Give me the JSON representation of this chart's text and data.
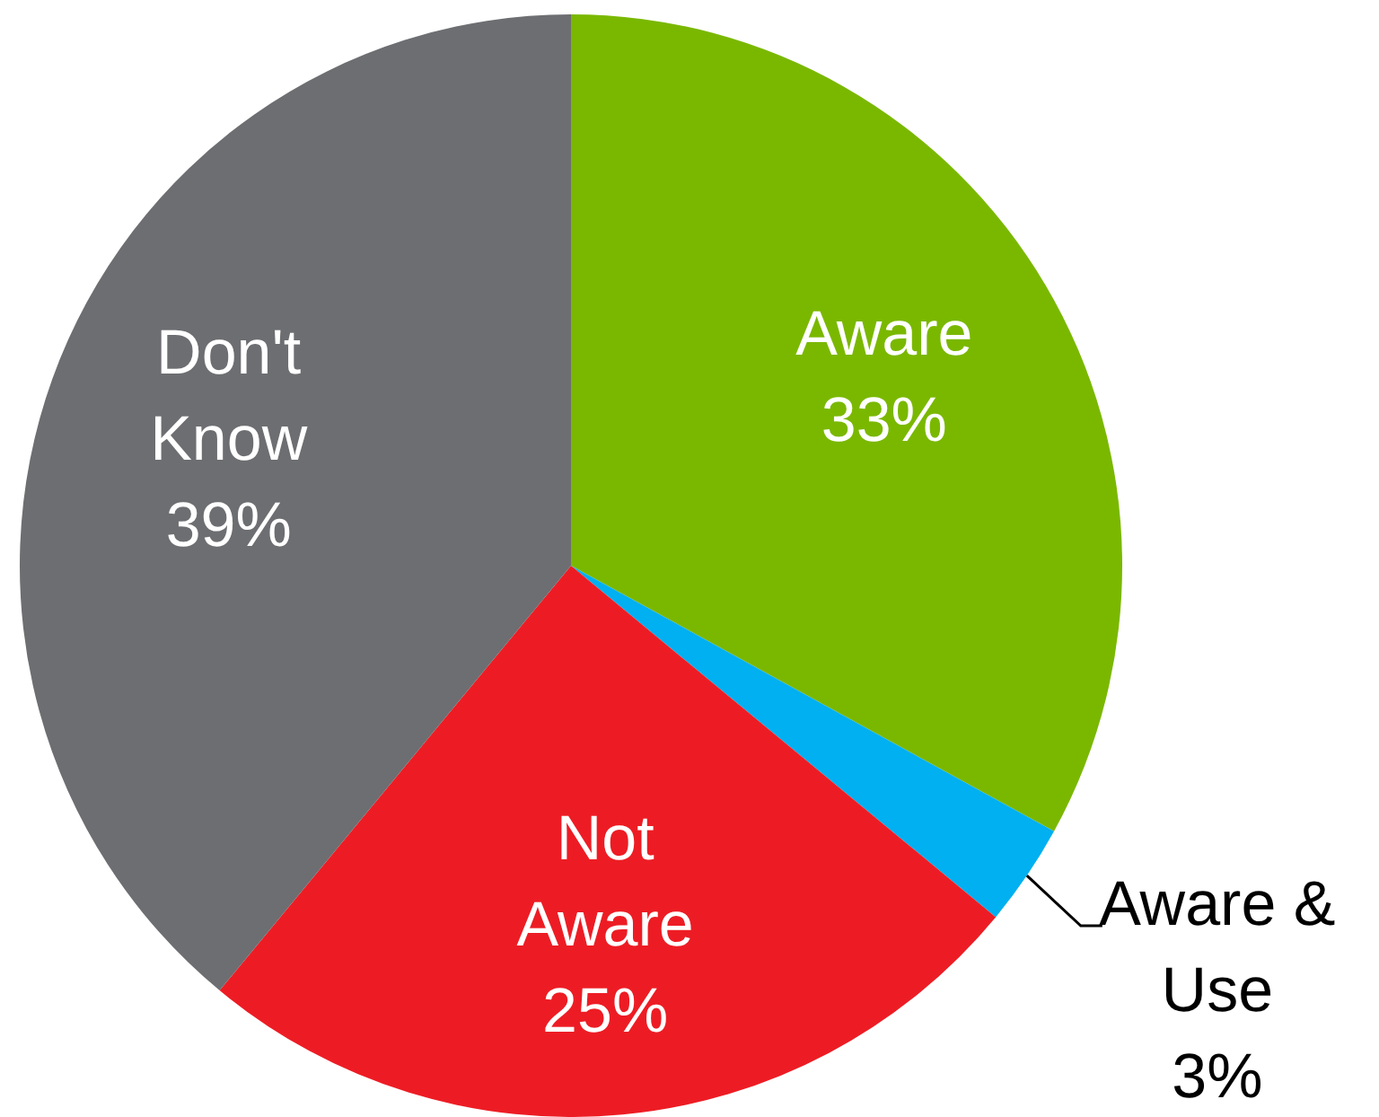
{
  "chart_data": {
    "type": "pie",
    "categories": [
      "Aware",
      "Aware & Use",
      "Not Aware",
      "Don't Know"
    ],
    "values": [
      33,
      3,
      25,
      39
    ],
    "colors": [
      "#7ab800",
      "#00b0f0",
      "#ed1c24",
      "#6d6e71"
    ],
    "value_labels": [
      "33%",
      "3%",
      "25%",
      "39%"
    ],
    "legend": false
  }
}
